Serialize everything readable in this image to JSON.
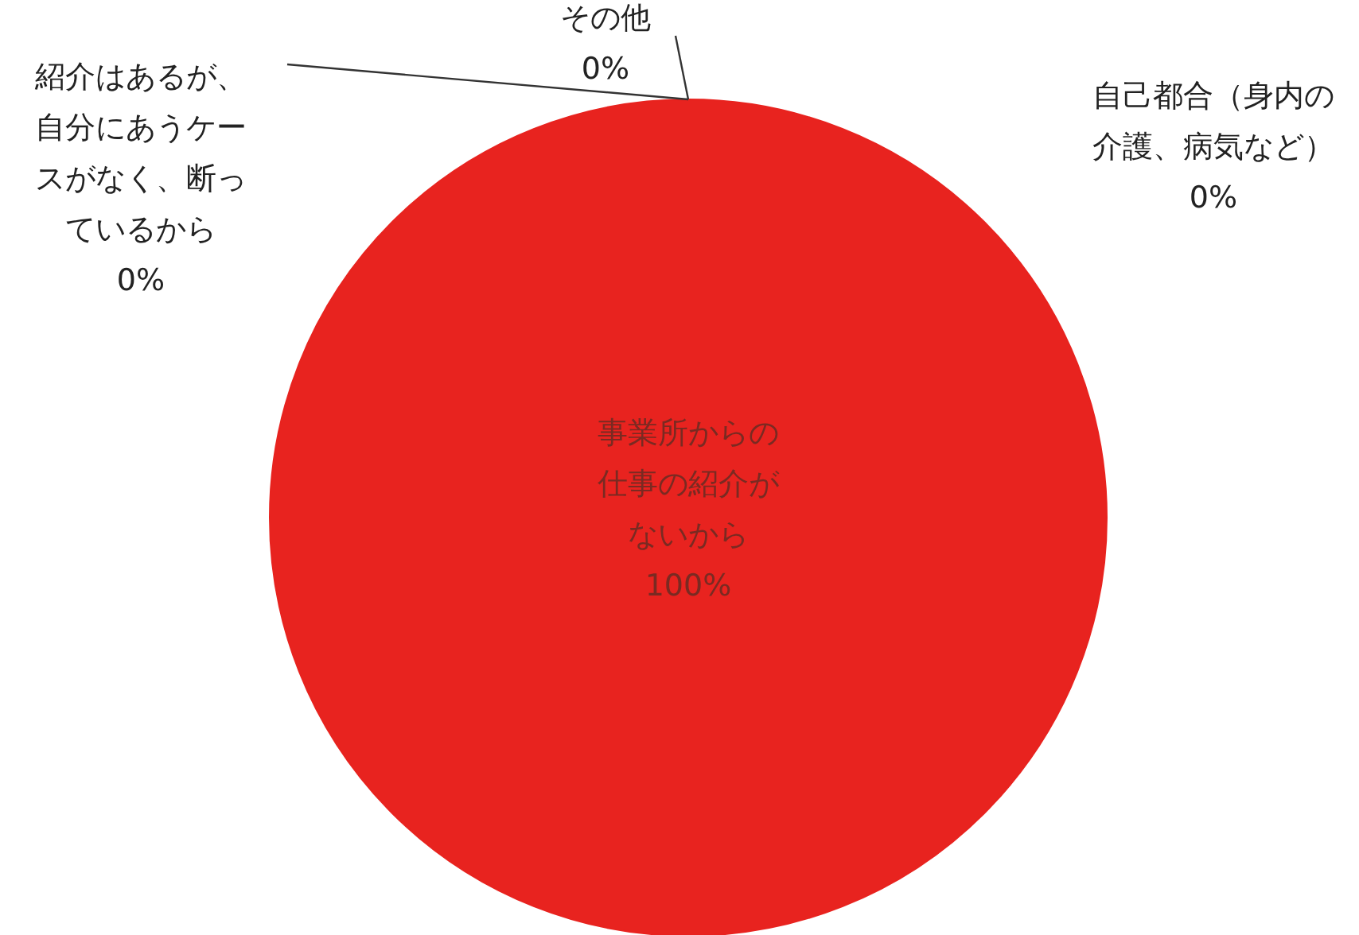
{
  "chart_data": {
    "type": "pie",
    "categories": [
      "事業所からの仕事の紹介がないから",
      "自己都合（身内の介護、病気など）",
      "紹介はあるが、自分にあうケースがなく、断っているから",
      "その他"
    ],
    "values": [
      100,
      0,
      0,
      0
    ],
    "colors": [
      "#e8231f",
      "#4f81bd",
      "#9bbb59",
      "#8064a2"
    ],
    "value_labels": [
      "100%",
      "0%",
      "0%",
      "0%"
    ],
    "legend": false
  }
}
